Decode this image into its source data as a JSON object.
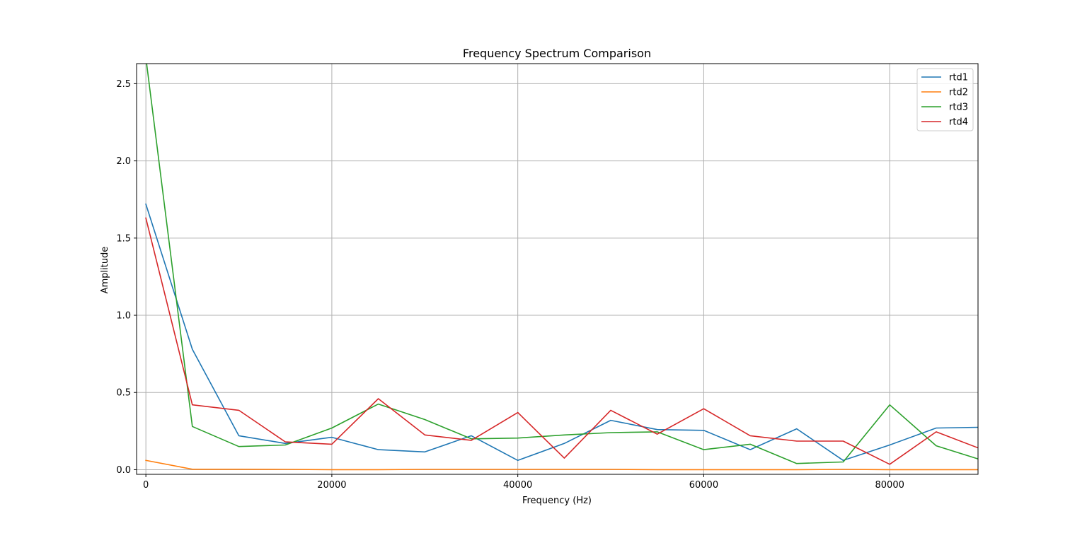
{
  "chart_data": {
    "type": "line",
    "title": "Frequency Spectrum Comparison",
    "xlabel": "Frequency (Hz)",
    "ylabel": "Amplitude",
    "xlim": [
      -1000,
      89500
    ],
    "ylim": [
      -0.03,
      2.63
    ],
    "xticks": [
      0,
      20000,
      40000,
      60000,
      80000
    ],
    "yticks": [
      0.0,
      0.5,
      1.0,
      1.5,
      2.0,
      2.5
    ],
    "xtick_labels": [
      "0",
      "20000",
      "40000",
      "60000",
      "80000"
    ],
    "ytick_labels": [
      "0.0",
      "0.5",
      "1.0",
      "1.5",
      "2.0",
      "2.5"
    ],
    "grid": true,
    "legend_position": "top-right",
    "x": [
      0,
      5000,
      10000,
      15000,
      20000,
      25000,
      30000,
      35000,
      40000,
      45000,
      50000,
      55000,
      60000,
      65000,
      70000,
      75000,
      80000,
      85000,
      90000
    ],
    "series": [
      {
        "name": "rtd1",
        "color": "#1f77b4",
        "values": [
          1.72,
          0.78,
          0.22,
          0.17,
          0.21,
          0.13,
          0.115,
          0.22,
          0.06,
          0.17,
          0.32,
          0.26,
          0.255,
          0.13,
          0.265,
          0.06,
          0.16,
          0.27,
          0.275
        ]
      },
      {
        "name": "rtd2",
        "color": "#ff7f0e",
        "values": [
          0.06,
          0.003,
          0.003,
          0.002,
          0.0,
          0.0,
          0.002,
          0.002,
          0.002,
          0.002,
          0.002,
          0.0,
          0.0,
          0.0,
          0.0,
          0.002,
          0.0,
          0.0,
          0.0
        ]
      },
      {
        "name": "rtd3",
        "color": "#2ca02c",
        "values": [
          2.67,
          0.28,
          0.15,
          0.16,
          0.27,
          0.425,
          0.325,
          0.2,
          0.205,
          0.225,
          0.24,
          0.245,
          0.13,
          0.165,
          0.04,
          0.05,
          0.42,
          0.155,
          0.06
        ]
      },
      {
        "name": "rtd4",
        "color": "#d62728",
        "values": [
          1.63,
          0.42,
          0.385,
          0.18,
          0.165,
          0.46,
          0.225,
          0.19,
          0.37,
          0.075,
          0.385,
          0.23,
          0.395,
          0.22,
          0.185,
          0.185,
          0.035,
          0.245,
          0.13
        ]
      }
    ]
  }
}
